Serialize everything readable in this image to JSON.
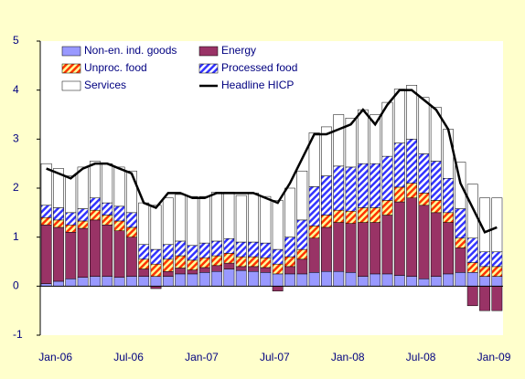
{
  "chart_data": {
    "type": "bar",
    "stacked": true,
    "categories": [
      "Jan-06",
      null,
      null,
      null,
      null,
      null,
      "Jul-06",
      null,
      null,
      null,
      null,
      null,
      "Jan-07",
      null,
      null,
      null,
      null,
      null,
      "Jul-07",
      null,
      null,
      null,
      null,
      null,
      "Jan-08",
      null,
      null,
      null,
      null,
      null,
      "Jul-08",
      null,
      null,
      null,
      null,
      null,
      "Jan-09",
      null
    ],
    "ylim": [
      -1,
      5
    ],
    "yticks": [
      -1,
      0,
      1,
      2,
      3,
      4,
      5
    ],
    "series": [
      {
        "name": "Non-en. ind. goods",
        "color": "#9999ff",
        "pattern": "solid",
        "values": [
          0.05,
          0.1,
          0.15,
          0.18,
          0.2,
          0.2,
          0.18,
          0.2,
          0.2,
          0.2,
          0.2,
          0.25,
          0.25,
          0.28,
          0.3,
          0.35,
          0.32,
          0.3,
          0.28,
          0.25,
          0.25,
          0.25,
          0.28,
          0.3,
          0.3,
          0.28,
          0.2,
          0.25,
          0.25,
          0.22,
          0.2,
          0.15,
          0.2,
          0.25,
          0.28,
          0.28,
          0.2,
          0.2
        ]
      },
      {
        "name": "Energy",
        "color": "#993366",
        "pattern": "solid",
        "values": [
          1.2,
          1.1,
          0.95,
          1.0,
          1.15,
          1.05,
          0.95,
          0.8,
          0.15,
          -0.05,
          0.1,
          0.12,
          0.08,
          0.1,
          0.12,
          0.12,
          0.08,
          0.1,
          0.1,
          -0.1,
          0.15,
          0.3,
          0.7,
          0.9,
          1.0,
          1.0,
          1.1,
          1.05,
          1.2,
          1.5,
          1.6,
          1.5,
          1.3,
          1.05,
          0.5,
          -0.4,
          -0.5,
          -0.5
        ]
      },
      {
        "name": "Unproc. food",
        "color": "#ff3300",
        "pattern": "hatch",
        "values": [
          0.15,
          0.15,
          0.15,
          0.15,
          0.2,
          0.2,
          0.2,
          0.2,
          0.2,
          0.25,
          0.25,
          0.25,
          0.2,
          0.2,
          0.2,
          0.2,
          0.2,
          0.2,
          0.2,
          0.2,
          0.2,
          0.2,
          0.25,
          0.25,
          0.25,
          0.25,
          0.3,
          0.3,
          0.3,
          0.3,
          0.3,
          0.25,
          0.25,
          0.2,
          0.2,
          0.2,
          0.2,
          0.2
        ]
      },
      {
        "name": "Processed food",
        "color": "#3333ff",
        "pattern": "hatch",
        "values": [
          0.25,
          0.25,
          0.25,
          0.25,
          0.25,
          0.25,
          0.3,
          0.3,
          0.3,
          0.3,
          0.3,
          0.3,
          0.3,
          0.3,
          0.3,
          0.3,
          0.3,
          0.3,
          0.3,
          0.3,
          0.4,
          0.6,
          0.8,
          0.8,
          0.9,
          0.9,
          0.9,
          0.9,
          0.9,
          0.9,
          0.9,
          0.8,
          0.8,
          0.7,
          0.6,
          0.5,
          0.3,
          0.3
        ]
      },
      {
        "name": "Services",
        "color": "#ffffff",
        "pattern": "solid",
        "values": [
          0.85,
          0.8,
          0.75,
          0.85,
          0.75,
          0.8,
          0.8,
          0.85,
          0.85,
          0.9,
          0.95,
          0.95,
          1.0,
          0.95,
          1.0,
          0.95,
          0.95,
          1.0,
          0.95,
          1.0,
          1.0,
          1.0,
          1.1,
          1.0,
          1.05,
          1.0,
          1.1,
          1.0,
          1.1,
          1.1,
          1.1,
          1.15,
          1.1,
          1.0,
          0.95,
          1.1,
          1.1,
          1.1
        ]
      },
      {
        "name": "Headline HICP",
        "color": "#000000",
        "kind": "line",
        "values": [
          2.4,
          2.3,
          2.2,
          2.4,
          2.5,
          2.5,
          2.4,
          2.3,
          1.7,
          1.6,
          1.9,
          1.9,
          1.8,
          1.8,
          1.9,
          1.9,
          1.9,
          1.9,
          1.8,
          1.7,
          2.1,
          2.6,
          3.1,
          3.1,
          3.2,
          3.3,
          3.6,
          3.3,
          3.7,
          4.0,
          4.0,
          3.8,
          3.6,
          3.2,
          2.1,
          1.6,
          1.1,
          1.2
        ]
      }
    ]
  }
}
